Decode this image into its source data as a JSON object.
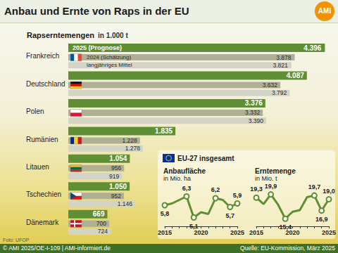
{
  "header": {
    "title": "Anbau und Ernte von Raps in der EU",
    "logo": "AMI"
  },
  "inset_title": "EU-27 insgesamt",
  "photo_credit": "Foto: UFOP",
  "footer": {
    "left": "© AMI 2025/OE-I-109 | AMI-informiert.de",
    "right": "Quelle: EU-Kommission, März 2025"
  },
  "chart_data": [
    {
      "type": "bar",
      "title": "Rapserntemengen",
      "subtitle": "in 1.000 t",
      "orientation": "horizontal",
      "categories": [
        "Frankreich",
        "Deutschland",
        "Polen",
        "Rumänien",
        "Litauen",
        "Tschechien",
        "Dänemark"
      ],
      "series": [
        {
          "name": "2025 (Prognose)",
          "color": "#5f8f34",
          "values": [
            4396,
            4087,
            3376,
            1835,
            1054,
            1050,
            669
          ],
          "value_labels": [
            "4.396",
            "4.087",
            "3.376",
            "1.835",
            "1.054",
            "1.050",
            "669"
          ]
        },
        {
          "name": "2024 (Schätzung)",
          "color": "#aeaf93",
          "values": [
            3878,
            3632,
            3332,
            1228,
            956,
            952,
            700
          ],
          "value_labels": [
            "3.878",
            "3.632",
            "3.332",
            "1.228",
            "956",
            "952",
            "700"
          ]
        },
        {
          "name": "langjähriges Mittel",
          "color": "#d4d4c6",
          "values": [
            3821,
            3792,
            3390,
            1278,
            919,
            1146,
            724
          ],
          "value_labels": [
            "3.821",
            "3.792",
            "3.390",
            "1.278",
            "919",
            "1.146",
            "724"
          ]
        }
      ],
      "xlim": [
        0,
        4500
      ],
      "xticks": [
        0,
        4500
      ],
      "tick_labels": "y",
      "data_labels": true,
      "grid": false
    },
    {
      "type": "line",
      "title": "Anbaufläche",
      "subtitle": "in Mio. ha",
      "categories": [
        "2015",
        null,
        null,
        null,
        null,
        "2020",
        null,
        null,
        null,
        null,
        "2025"
      ],
      "values": [
        5.8,
        5.9,
        6.1,
        6.3,
        5.1,
        5.4,
        5.3,
        6.2,
        6.1,
        5.7,
        5.9
      ],
      "value_labels": [
        "5,8",
        null,
        null,
        "6,3",
        "5,1",
        null,
        null,
        "6,2",
        null,
        "5,7",
        "5,9"
      ],
      "color": "#5f8f34",
      "marker": "circle",
      "ylim": [
        4.6,
        6.6
      ],
      "yticks": [
        4.6,
        6.6
      ],
      "tick_labels": "x",
      "data_labels": true,
      "grid": false
    },
    {
      "type": "line",
      "title": "Erntemenge",
      "subtitle": "in Mio. t",
      "categories": [
        "2015",
        null,
        null,
        null,
        null,
        "2020",
        null,
        null,
        null,
        null,
        "2025"
      ],
      "values": [
        19.3,
        18.1,
        19.9,
        18.0,
        15.4,
        16.7,
        17.0,
        19.4,
        19.7,
        16.9,
        19.0
      ],
      "value_labels": [
        "19,3",
        null,
        "19,9",
        null,
        "15,4",
        null,
        null,
        null,
        "19,7",
        "16,9",
        "19,0"
      ],
      "color": "#5f8f34",
      "marker": "circle",
      "ylim": [
        14,
        20.5
      ],
      "yticks": [
        14,
        20.5
      ],
      "tick_labels": "x",
      "data_labels": true,
      "grid": false
    }
  ]
}
